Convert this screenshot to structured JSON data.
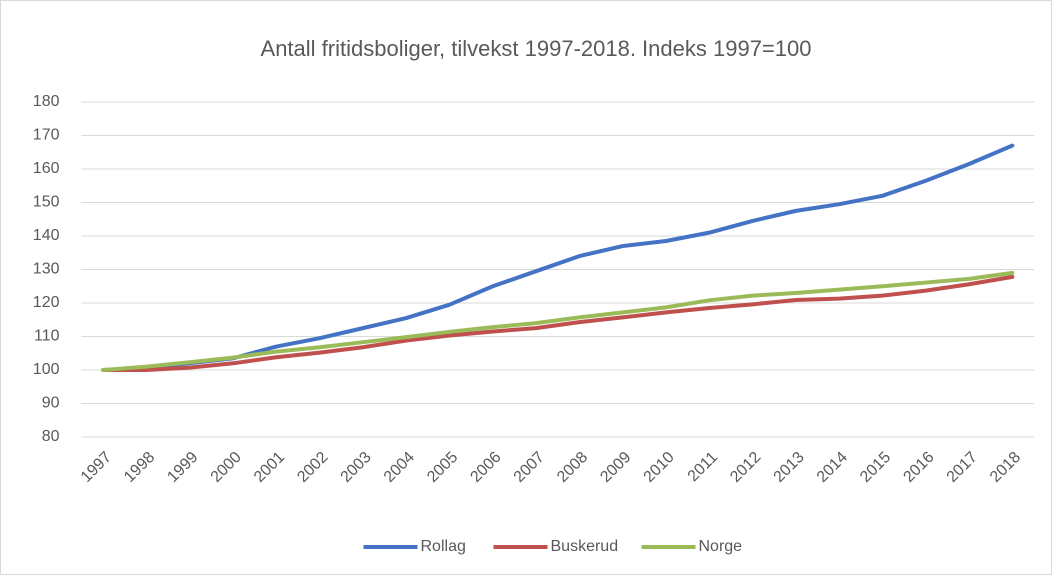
{
  "chart_data": {
    "type": "line",
    "title": "Antall fritidsboliger, tilvekst 1997-2018. Indeks 1997=100",
    "categories": [
      "1997",
      "1998",
      "1999",
      "2000",
      "2001",
      "2002",
      "2003",
      "2004",
      "2005",
      "2006",
      "2007",
      "2008",
      "2009",
      "2010",
      "2011",
      "2012",
      "2013",
      "2014",
      "2015",
      "2016",
      "2017",
      "2018"
    ],
    "series": [
      {
        "name": "Rollag",
        "color": "#4472c4",
        "values": [
          100,
          100.5,
          102,
          103.5,
          107,
          109.5,
          112.5,
          115.5,
          119.5,
          125,
          129.5,
          134,
          137,
          138.5,
          141,
          144.5,
          147.5,
          149.5,
          152,
          156.5,
          161.5,
          167
        ]
      },
      {
        "name": "Buskerud",
        "color": "#c0504d",
        "values": [
          100,
          100,
          100.7,
          102,
          103.8,
          105.2,
          106.8,
          108.8,
          110.3,
          111.5,
          112.5,
          114.3,
          115.7,
          117.2,
          118.5,
          119.6,
          120.9,
          121.3,
          122.2,
          123.7,
          125.6,
          127.8
        ]
      },
      {
        "name": "Norge",
        "color": "#9bbb59",
        "values": [
          100,
          101,
          102.3,
          103.7,
          105.5,
          106.8,
          108.3,
          109.8,
          111.4,
          112.8,
          114,
          115.7,
          117.2,
          118.7,
          120.8,
          122.2,
          123,
          124,
          125,
          126.1,
          127.2,
          129
        ]
      }
    ],
    "ylim": [
      80,
      180
    ],
    "yticks": [
      80,
      90,
      100,
      110,
      120,
      130,
      140,
      150,
      160,
      170,
      180
    ],
    "grid": true,
    "legend": "bottom"
  }
}
